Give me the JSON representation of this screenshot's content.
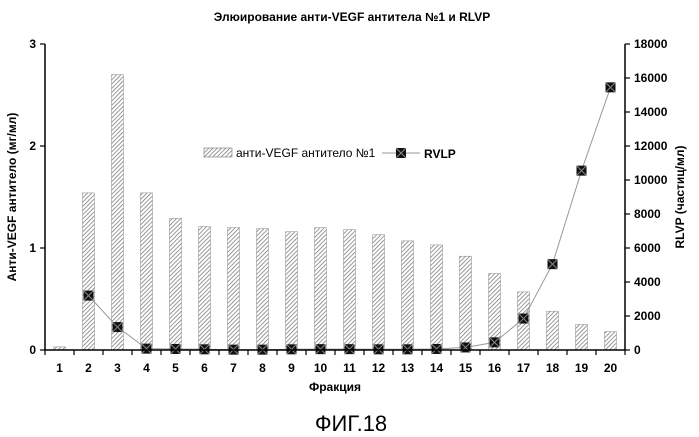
{
  "chart_data": {
    "type": "bar",
    "title": "Элюирование анти-VEGF антитела №1 и RLVP",
    "xlabel": "Фракция",
    "ylabel_left": "Анти-VEGF антитело (мг/мл)",
    "ylabel_right": "RLVP (частиц/мл)",
    "categories": [
      "1",
      "2",
      "3",
      "4",
      "5",
      "6",
      "7",
      "8",
      "9",
      "10",
      "11",
      "12",
      "13",
      "14",
      "15",
      "16",
      "17",
      "18",
      "19",
      "20"
    ],
    "yticks_left": [
      "0",
      "1",
      "2",
      "3"
    ],
    "yticks_right": [
      "0",
      "2000",
      "4000",
      "6000",
      "8000",
      "10000",
      "12000",
      "14000",
      "16000",
      "18000"
    ],
    "ylim_left": [
      0,
      3
    ],
    "ylim_right": [
      0,
      18000
    ],
    "series": [
      {
        "name": "анти-VEGF антитело №1",
        "type": "bar",
        "axis": "left",
        "values": [
          0.03,
          1.54,
          2.7,
          1.54,
          1.29,
          1.21,
          1.2,
          1.19,
          1.16,
          1.2,
          1.18,
          1.13,
          1.07,
          1.03,
          0.92,
          0.75,
          0.57,
          0.38,
          0.25,
          0.18
        ]
      },
      {
        "name": "RVLP",
        "type": "line",
        "axis": "right",
        "values": [
          null,
          3200,
          1350,
          80,
          60,
          40,
          20,
          20,
          40,
          50,
          50,
          40,
          40,
          60,
          150,
          450,
          1850,
          5050,
          10550,
          15450
        ]
      }
    ],
    "legend_position": "center",
    "grid": false
  },
  "figure_caption": "ФИГ.18"
}
